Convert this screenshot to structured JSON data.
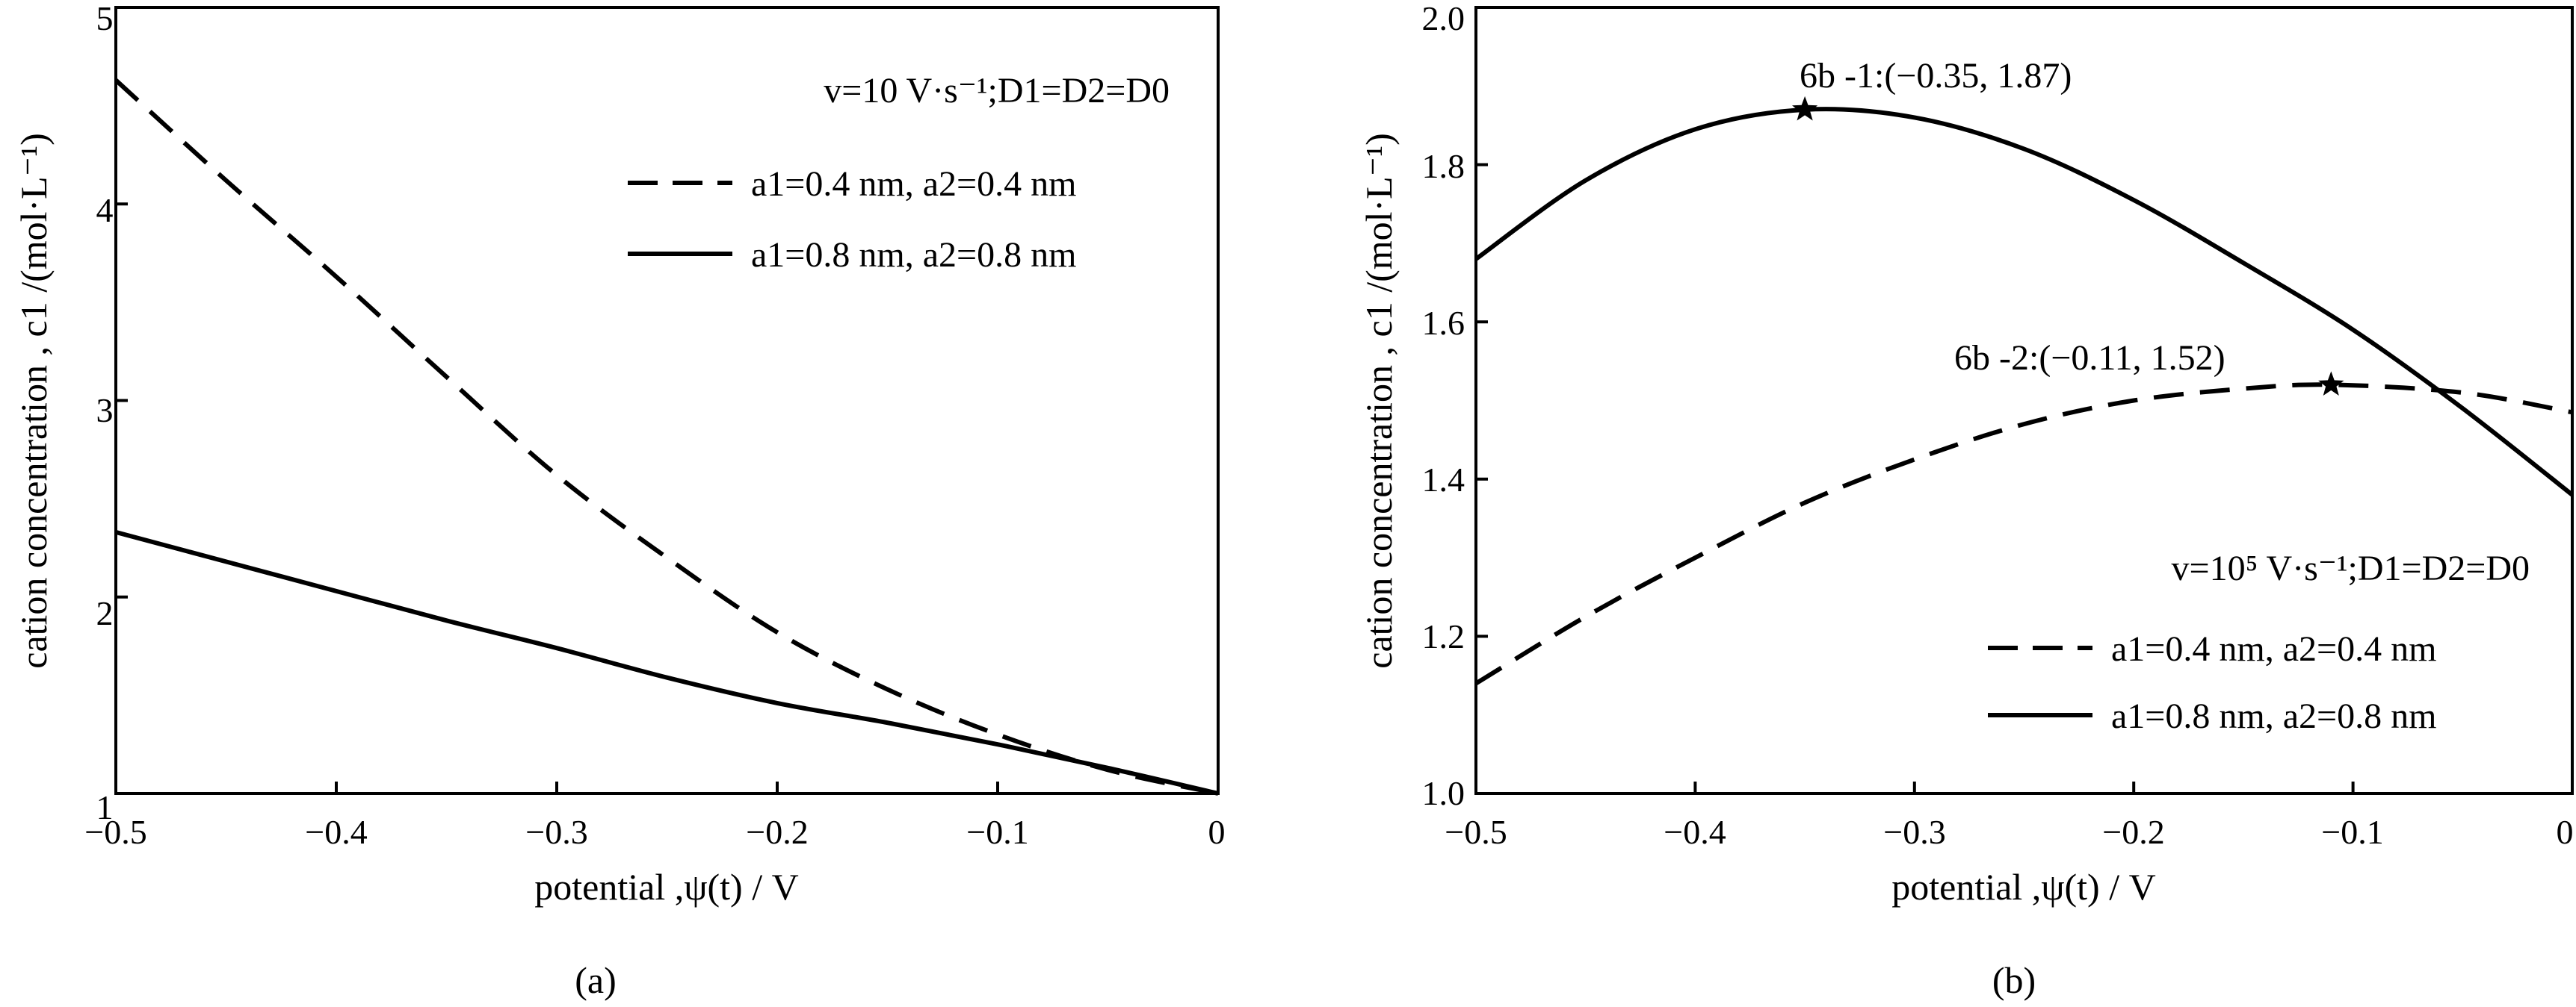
{
  "chart_data": [
    {
      "panel": "(a)",
      "type": "line",
      "xlabel": "potential ,ψ(t) / V",
      "ylabel": "cation concentration , c1 /(mol·L⁻¹)",
      "xlim": [
        -0.5,
        0
      ],
      "ylim": [
        1,
        5
      ],
      "x_ticks": [
        "−0.5",
        "−0.4",
        "−0.3",
        "−0.2",
        "−0.1",
        "0"
      ],
      "y_ticks": [
        "1",
        "2",
        "3",
        "4",
        "5"
      ],
      "grid": false,
      "legend_title": "v=10 V·s⁻¹;D1=D2=D0",
      "legend_position": "top-right",
      "series": [
        {
          "name": "a1=0.4 nm, a2=0.4 nm",
          "style": "dashed",
          "x": [
            -0.5,
            -0.45,
            -0.4,
            -0.35,
            -0.3,
            -0.25,
            -0.2,
            -0.15,
            -0.1,
            -0.05,
            0
          ],
          "y": [
            4.63,
            4.12,
            3.63,
            3.12,
            2.62,
            2.2,
            1.82,
            1.53,
            1.3,
            1.12,
            1.0
          ]
        },
        {
          "name": "a1=0.8 nm, a2=0.8 nm",
          "style": "solid",
          "x": [
            -0.5,
            -0.45,
            -0.4,
            -0.35,
            -0.3,
            -0.25,
            -0.2,
            -0.15,
            -0.1,
            -0.05,
            0
          ],
          "y": [
            2.33,
            2.18,
            2.03,
            1.88,
            1.74,
            1.59,
            1.46,
            1.36,
            1.25,
            1.13,
            1.0
          ]
        }
      ]
    },
    {
      "panel": "(b)",
      "type": "line",
      "xlabel": "potential ,ψ(t) / V",
      "ylabel": "cation concentration , c1 /(mol·L⁻¹)",
      "xlim": [
        -0.5,
        0
      ],
      "ylim": [
        1.0,
        2.0
      ],
      "x_ticks": [
        "−0.5",
        "−0.4",
        "−0.3",
        "−0.2",
        "−0.1",
        "0"
      ],
      "y_ticks": [
        "1.0",
        "1.2",
        "1.4",
        "1.6",
        "1.8",
        "2.0"
      ],
      "grid": false,
      "legend_title": "v=10⁵ V·s⁻¹;D1=D2=D0",
      "legend_position": "bottom-right",
      "series": [
        {
          "name": "a1=0.4 nm, a2=0.4 nm",
          "style": "dashed",
          "x": [
            -0.5,
            -0.45,
            -0.4,
            -0.35,
            -0.3,
            -0.25,
            -0.2,
            -0.15,
            -0.11,
            -0.05,
            0
          ],
          "y": [
            1.14,
            1.225,
            1.3,
            1.37,
            1.425,
            1.47,
            1.5,
            1.515,
            1.52,
            1.51,
            1.485
          ]
        },
        {
          "name": "a1=0.8 nm, a2=0.8 nm",
          "style": "solid",
          "x": [
            -0.5,
            -0.45,
            -0.4,
            -0.35,
            -0.3,
            -0.25,
            -0.2,
            -0.15,
            -0.1,
            -0.05,
            0
          ],
          "y": [
            1.68,
            1.78,
            1.845,
            1.87,
            1.86,
            1.82,
            1.755,
            1.675,
            1.59,
            1.49,
            1.38
          ]
        }
      ],
      "annotations": [
        {
          "text": "6b -1:(−0.35, 1.87)",
          "x": -0.35,
          "y": 1.87
        },
        {
          "text": "6b -2:(−0.11, 1.52)",
          "x": -0.11,
          "y": 1.52
        }
      ]
    }
  ]
}
